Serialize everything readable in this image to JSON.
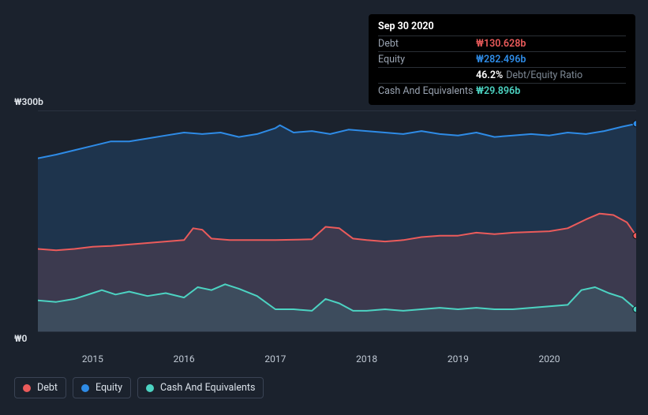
{
  "background_color": "#1b222d",
  "tooltip": {
    "date": "Sep 30 2020",
    "rows": [
      {
        "label": "Debt",
        "value": "₩130.628b",
        "color": "#eb5b5b"
      },
      {
        "label": "Equity",
        "value": "₩282.496b",
        "color": "#2e8be6"
      },
      {
        "label": "",
        "pct": "46.2%",
        "pct_label": "Debt/Equity Ratio"
      },
      {
        "label": "Cash And Equivalents",
        "value": "₩29.896b",
        "color": "#4cd3c2"
      }
    ]
  },
  "chart": {
    "type": "area",
    "ylim": [
      0,
      300
    ],
    "y_ticks": [
      {
        "v": 0,
        "label": "₩0"
      },
      {
        "v": 300,
        "label": "₩300b"
      }
    ],
    "x_categories": [
      "2015",
      "2016",
      "2017",
      "2018",
      "2019",
      "2020"
    ],
    "x_range": [
      2014.4,
      2020.95
    ],
    "grid_color": "#2a3240",
    "line_width": 2,
    "series": [
      {
        "name": "Equity",
        "color": "#2e8be6",
        "fill": "rgba(46,139,230,0.18)",
        "data": [
          [
            2014.4,
            235
          ],
          [
            2014.6,
            240
          ],
          [
            2014.8,
            246
          ],
          [
            2015.0,
            252
          ],
          [
            2015.2,
            258
          ],
          [
            2015.4,
            258
          ],
          [
            2015.6,
            262
          ],
          [
            2015.8,
            266
          ],
          [
            2016.0,
            270
          ],
          [
            2016.2,
            268
          ],
          [
            2016.4,
            270
          ],
          [
            2016.6,
            264
          ],
          [
            2016.8,
            268
          ],
          [
            2017.0,
            276
          ],
          [
            2017.05,
            280
          ],
          [
            2017.2,
            270
          ],
          [
            2017.4,
            272
          ],
          [
            2017.6,
            268
          ],
          [
            2017.8,
            274
          ],
          [
            2018.0,
            272
          ],
          [
            2018.2,
            270
          ],
          [
            2018.4,
            268
          ],
          [
            2018.6,
            272
          ],
          [
            2018.8,
            268
          ],
          [
            2019.0,
            266
          ],
          [
            2019.2,
            270
          ],
          [
            2019.4,
            264
          ],
          [
            2019.6,
            266
          ],
          [
            2019.8,
            268
          ],
          [
            2020.0,
            266
          ],
          [
            2020.2,
            270
          ],
          [
            2020.4,
            268
          ],
          [
            2020.6,
            272
          ],
          [
            2020.8,
            278
          ],
          [
            2020.95,
            282
          ]
        ],
        "end_dot": true
      },
      {
        "name": "Debt",
        "color": "#eb5b5b",
        "fill": "rgba(235,91,91,0.15)",
        "data": [
          [
            2014.4,
            112
          ],
          [
            2014.6,
            110
          ],
          [
            2014.8,
            112
          ],
          [
            2015.0,
            115
          ],
          [
            2015.2,
            116
          ],
          [
            2015.4,
            118
          ],
          [
            2015.6,
            120
          ],
          [
            2015.8,
            122
          ],
          [
            2016.0,
            124
          ],
          [
            2016.1,
            140
          ],
          [
            2016.2,
            138
          ],
          [
            2016.3,
            126
          ],
          [
            2016.5,
            124
          ],
          [
            2016.8,
            124
          ],
          [
            2017.0,
            124
          ],
          [
            2017.4,
            125
          ],
          [
            2017.55,
            142
          ],
          [
            2017.7,
            140
          ],
          [
            2017.85,
            126
          ],
          [
            2018.0,
            124
          ],
          [
            2018.2,
            122
          ],
          [
            2018.4,
            124
          ],
          [
            2018.6,
            128
          ],
          [
            2018.8,
            130
          ],
          [
            2019.0,
            130
          ],
          [
            2019.2,
            134
          ],
          [
            2019.4,
            132
          ],
          [
            2019.6,
            134
          ],
          [
            2019.8,
            135
          ],
          [
            2020.0,
            136
          ],
          [
            2020.2,
            140
          ],
          [
            2020.4,
            152
          ],
          [
            2020.55,
            160
          ],
          [
            2020.7,
            158
          ],
          [
            2020.85,
            148
          ],
          [
            2020.95,
            130
          ]
        ],
        "end_dot": true
      },
      {
        "name": "Cash And Equivalents",
        "color": "#4cd3c2",
        "fill": "rgba(76,211,194,0.12)",
        "data": [
          [
            2014.4,
            42
          ],
          [
            2014.6,
            40
          ],
          [
            2014.8,
            44
          ],
          [
            2015.0,
            52
          ],
          [
            2015.1,
            56
          ],
          [
            2015.25,
            50
          ],
          [
            2015.4,
            54
          ],
          [
            2015.6,
            48
          ],
          [
            2015.8,
            52
          ],
          [
            2016.0,
            46
          ],
          [
            2016.15,
            60
          ],
          [
            2016.3,
            56
          ],
          [
            2016.45,
            64
          ],
          [
            2016.6,
            58
          ],
          [
            2016.8,
            48
          ],
          [
            2017.0,
            30
          ],
          [
            2017.2,
            30
          ],
          [
            2017.4,
            28
          ],
          [
            2017.55,
            44
          ],
          [
            2017.7,
            38
          ],
          [
            2017.85,
            28
          ],
          [
            2018.0,
            28
          ],
          [
            2018.2,
            30
          ],
          [
            2018.4,
            28
          ],
          [
            2018.6,
            30
          ],
          [
            2018.8,
            32
          ],
          [
            2019.0,
            30
          ],
          [
            2019.2,
            32
          ],
          [
            2019.4,
            30
          ],
          [
            2019.6,
            30
          ],
          [
            2019.8,
            32
          ],
          [
            2020.0,
            34
          ],
          [
            2020.2,
            36
          ],
          [
            2020.35,
            56
          ],
          [
            2020.5,
            60
          ],
          [
            2020.65,
            52
          ],
          [
            2020.8,
            46
          ],
          [
            2020.95,
            30
          ]
        ],
        "end_dot": true
      }
    ]
  },
  "legend": [
    {
      "label": "Debt",
      "color": "#eb5b5b"
    },
    {
      "label": "Equity",
      "color": "#2e8be6"
    },
    {
      "label": "Cash And Equivalents",
      "color": "#4cd3c2"
    }
  ]
}
